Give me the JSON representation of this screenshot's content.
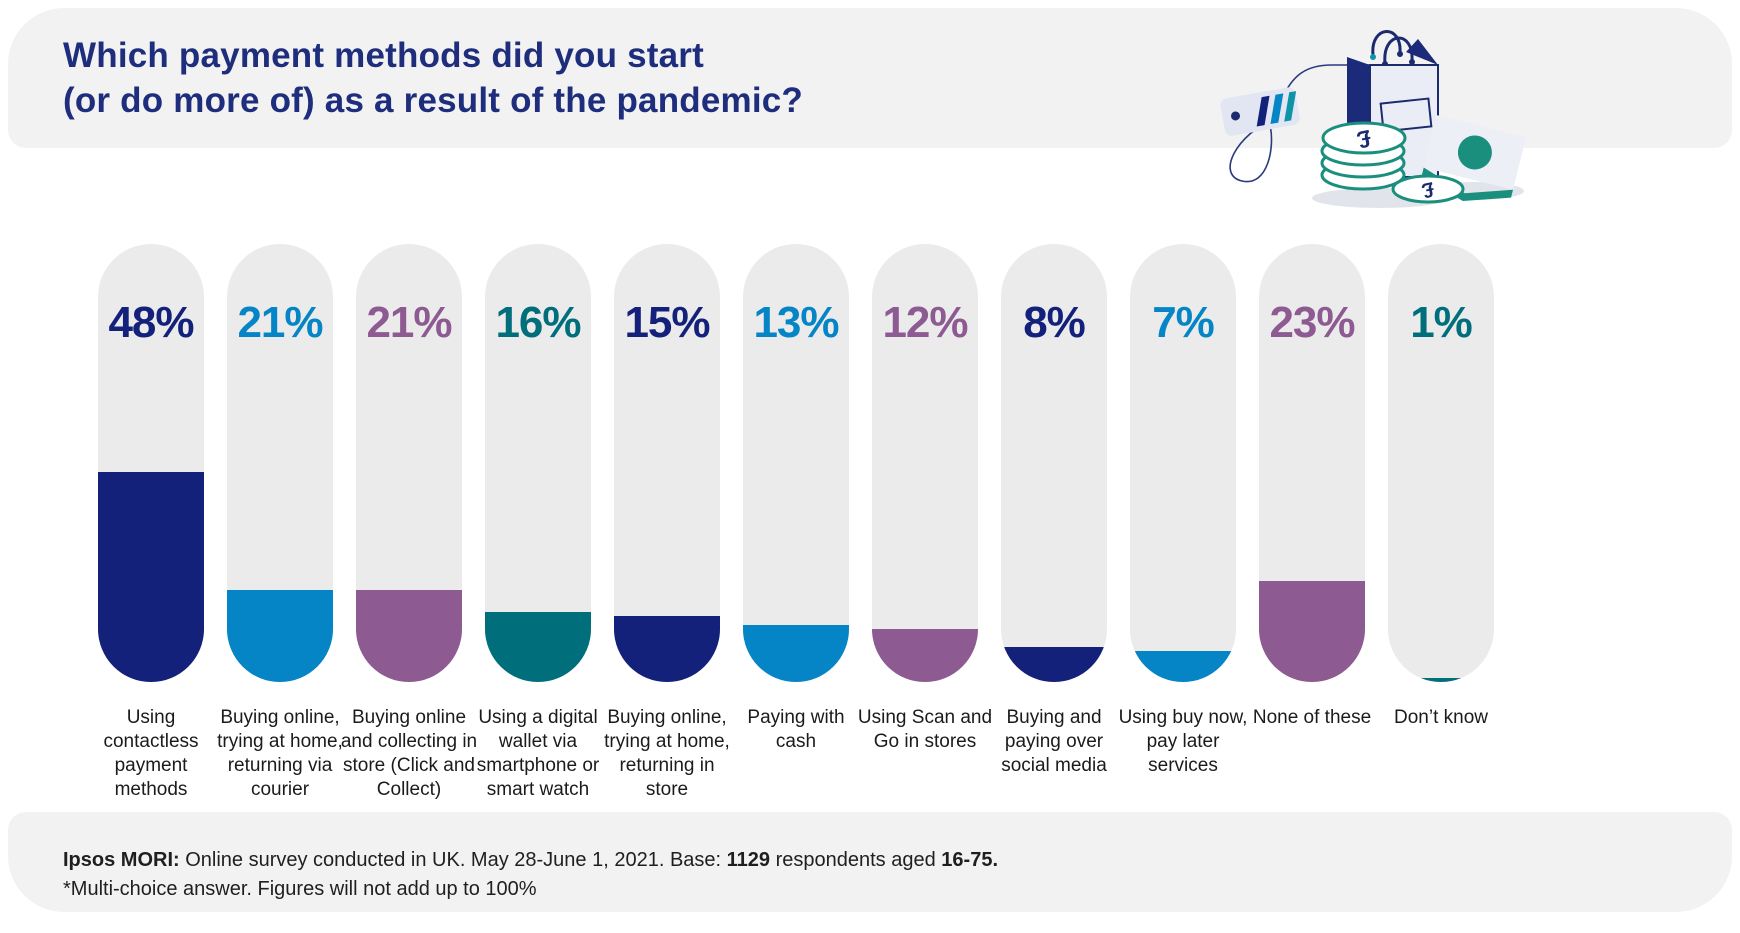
{
  "header": {
    "title_line1": "Which payment methods did you start",
    "title_line2": "(or do more of) as a result of the pandemic?"
  },
  "palette": {
    "navy": "#13217A",
    "blue": "#0685C6",
    "purple": "#8E5A92",
    "teal": "#006F7B",
    "title_navy": "#1E2D7C",
    "pill_background": "#EBEBEC",
    "band_background": "#F2F2F3",
    "note_green": "#1A8F7D"
  },
  "illustration": {
    "coin_symbol": "£"
  },
  "chart_data": {
    "type": "bar",
    "title": "Which payment methods did you start (or do more of) as a result of the pandemic?",
    "unit": "%",
    "ylim": [
      0,
      100
    ],
    "legend": "none",
    "grid": "off",
    "categories": [
      "Using contactless payment methods",
      "Buying online, trying at home, returning via courier",
      "Buying online and collecting in store (Click and Collect)",
      "Using a digital wallet via smartphone or smart watch",
      "Buying online, trying at home, returning in store",
      "Paying with cash",
      "Using Scan and Go in stores",
      "Buying and paying over social media",
      "Using buy now, pay later services",
      "None of these",
      "Don’t know"
    ],
    "values": [
      48,
      21,
      21,
      16,
      15,
      13,
      12,
      8,
      7,
      23,
      1
    ],
    "bars": [
      {
        "label_lines": "Using\ncontactless\npayment\nmethods",
        "value": 48,
        "display": "48%",
        "color": "#13217A"
      },
      {
        "label_lines": "Buying online,\ntrying at home,\nreturning via\ncourier",
        "value": 21,
        "display": "21%",
        "color": "#0685C6"
      },
      {
        "label_lines": "Buying online\nand collecting in\nstore (Click and\nCollect)",
        "value": 21,
        "display": "21%",
        "color": "#8E5A92"
      },
      {
        "label_lines": "Using a digital\nwallet via\nsmartphone or\nsmart watch",
        "value": 16,
        "display": "16%",
        "color": "#006F7B"
      },
      {
        "label_lines": "Buying online,\ntrying at home,\nreturning in\nstore",
        "value": 15,
        "display": "15%",
        "color": "#13217A"
      },
      {
        "label_lines": "Paying with\ncash",
        "value": 13,
        "display": "13%",
        "color": "#0685C6"
      },
      {
        "label_lines": "Using Scan and\nGo in stores",
        "value": 12,
        "display": "12%",
        "color": "#8E5A92"
      },
      {
        "label_lines": "Buying and\npaying over\nsocial media",
        "value": 8,
        "display": "8%",
        "color": "#13217A"
      },
      {
        "label_lines": "Using buy now,\npay later\nservices",
        "value": 7,
        "display": "7%",
        "color": "#0685C6"
      },
      {
        "label_lines": "None of these",
        "value": 23,
        "display": "23%",
        "color": "#8E5A92"
      },
      {
        "label_lines": "Don’t know",
        "value": 1,
        "display": "1%",
        "color": "#006F7B"
      }
    ]
  },
  "footer": {
    "bold1": "Ipsos MORI:",
    "text1": " Online survey conducted in UK. May 28-June 1, 2021. Base: ",
    "bold2": "1129",
    "text2": " respondents aged ",
    "bold3": "16-75.",
    "note": "*Multi-choice answer. Figures will not add up to 100%"
  }
}
